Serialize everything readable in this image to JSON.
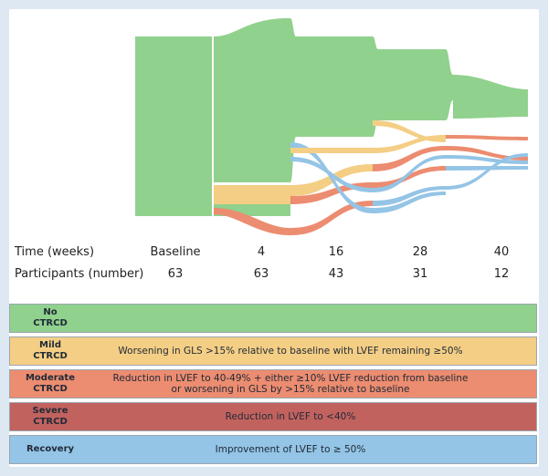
{
  "diagram": {
    "time_label": "Time (weeks)",
    "participants_label": "Participants (number)",
    "timepoints": [
      {
        "time": "Baseline",
        "participants": "63"
      },
      {
        "time": "4",
        "participants": "63"
      },
      {
        "time": "16",
        "participants": "43"
      },
      {
        "time": "28",
        "participants": "31"
      },
      {
        "time": "40",
        "participants": "12"
      }
    ],
    "colors": {
      "none": "#90d18d",
      "mild": "#f4ce85",
      "moderate": "#ec8c70",
      "severe": "#c2625f",
      "recovery": "#94c4e6"
    }
  },
  "legend": [
    {
      "key": "none",
      "term": "No\nCTRCD",
      "description": "",
      "color": "#90d18d"
    },
    {
      "key": "mild",
      "term": "Mild\nCTRCD",
      "description": "Worsening in GLS >15% relative to baseline with LVEF remaining ≥50%",
      "color": "#f4ce85"
    },
    {
      "key": "moderate",
      "term": "Moderate\nCTRCD",
      "description": "Reduction in LVEF to 40-49% + either ≥10% LVEF reduction from baseline\nor worsening in GLS by >15% relative to baseline",
      "color": "#ec8c70"
    },
    {
      "key": "severe",
      "term": "Severe\nCTRCD",
      "description": "Reduction in LVEF to <40%",
      "color": "#c2625f"
    },
    {
      "key": "recovery",
      "term": "Recovery",
      "description": "Improvement of LVEF to ≥ 50%",
      "color": "#94c4e6"
    }
  ]
}
